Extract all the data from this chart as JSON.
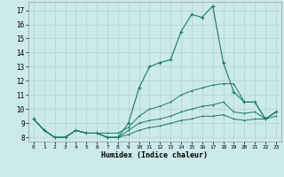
{
  "xlabel": "Humidex (Indice chaleur)",
  "xlim": [
    -0.5,
    23.5
  ],
  "ylim": [
    7.7,
    17.6
  ],
  "yticks": [
    8,
    9,
    10,
    11,
    12,
    13,
    14,
    15,
    16,
    17
  ],
  "xticks": [
    0,
    1,
    2,
    3,
    4,
    5,
    6,
    7,
    8,
    9,
    10,
    11,
    12,
    13,
    14,
    15,
    16,
    17,
    18,
    19,
    20,
    21,
    22,
    23
  ],
  "bg_color": "#cceaea",
  "grid_color": "#b8d4d4",
  "line_color": "#1a7a6a",
  "lines": [
    [
      9.3,
      8.5,
      8.0,
      8.0,
      8.5,
      8.3,
      8.3,
      8.0,
      8.0,
      9.0,
      11.5,
      13.0,
      13.3,
      13.5,
      15.5,
      16.7,
      16.5,
      17.3,
      13.3,
      11.2,
      10.5,
      10.5,
      9.3,
      9.8
    ],
    [
      9.3,
      8.5,
      8.0,
      8.0,
      8.5,
      8.3,
      8.3,
      8.3,
      8.3,
      8.7,
      9.5,
      10.0,
      10.2,
      10.5,
      11.0,
      11.3,
      11.5,
      11.7,
      11.8,
      11.8,
      10.5,
      10.5,
      9.3,
      9.8
    ],
    [
      9.3,
      8.5,
      8.0,
      8.0,
      8.5,
      8.3,
      8.3,
      8.0,
      8.0,
      8.5,
      9.0,
      9.2,
      9.3,
      9.5,
      9.8,
      10.0,
      10.2,
      10.3,
      10.5,
      9.8,
      9.7,
      9.8,
      9.3,
      9.8
    ],
    [
      9.3,
      8.5,
      8.0,
      8.0,
      8.5,
      8.3,
      8.3,
      8.0,
      8.0,
      8.2,
      8.5,
      8.7,
      8.8,
      9.0,
      9.2,
      9.3,
      9.5,
      9.5,
      9.6,
      9.3,
      9.2,
      9.3,
      9.3,
      9.5
    ]
  ]
}
